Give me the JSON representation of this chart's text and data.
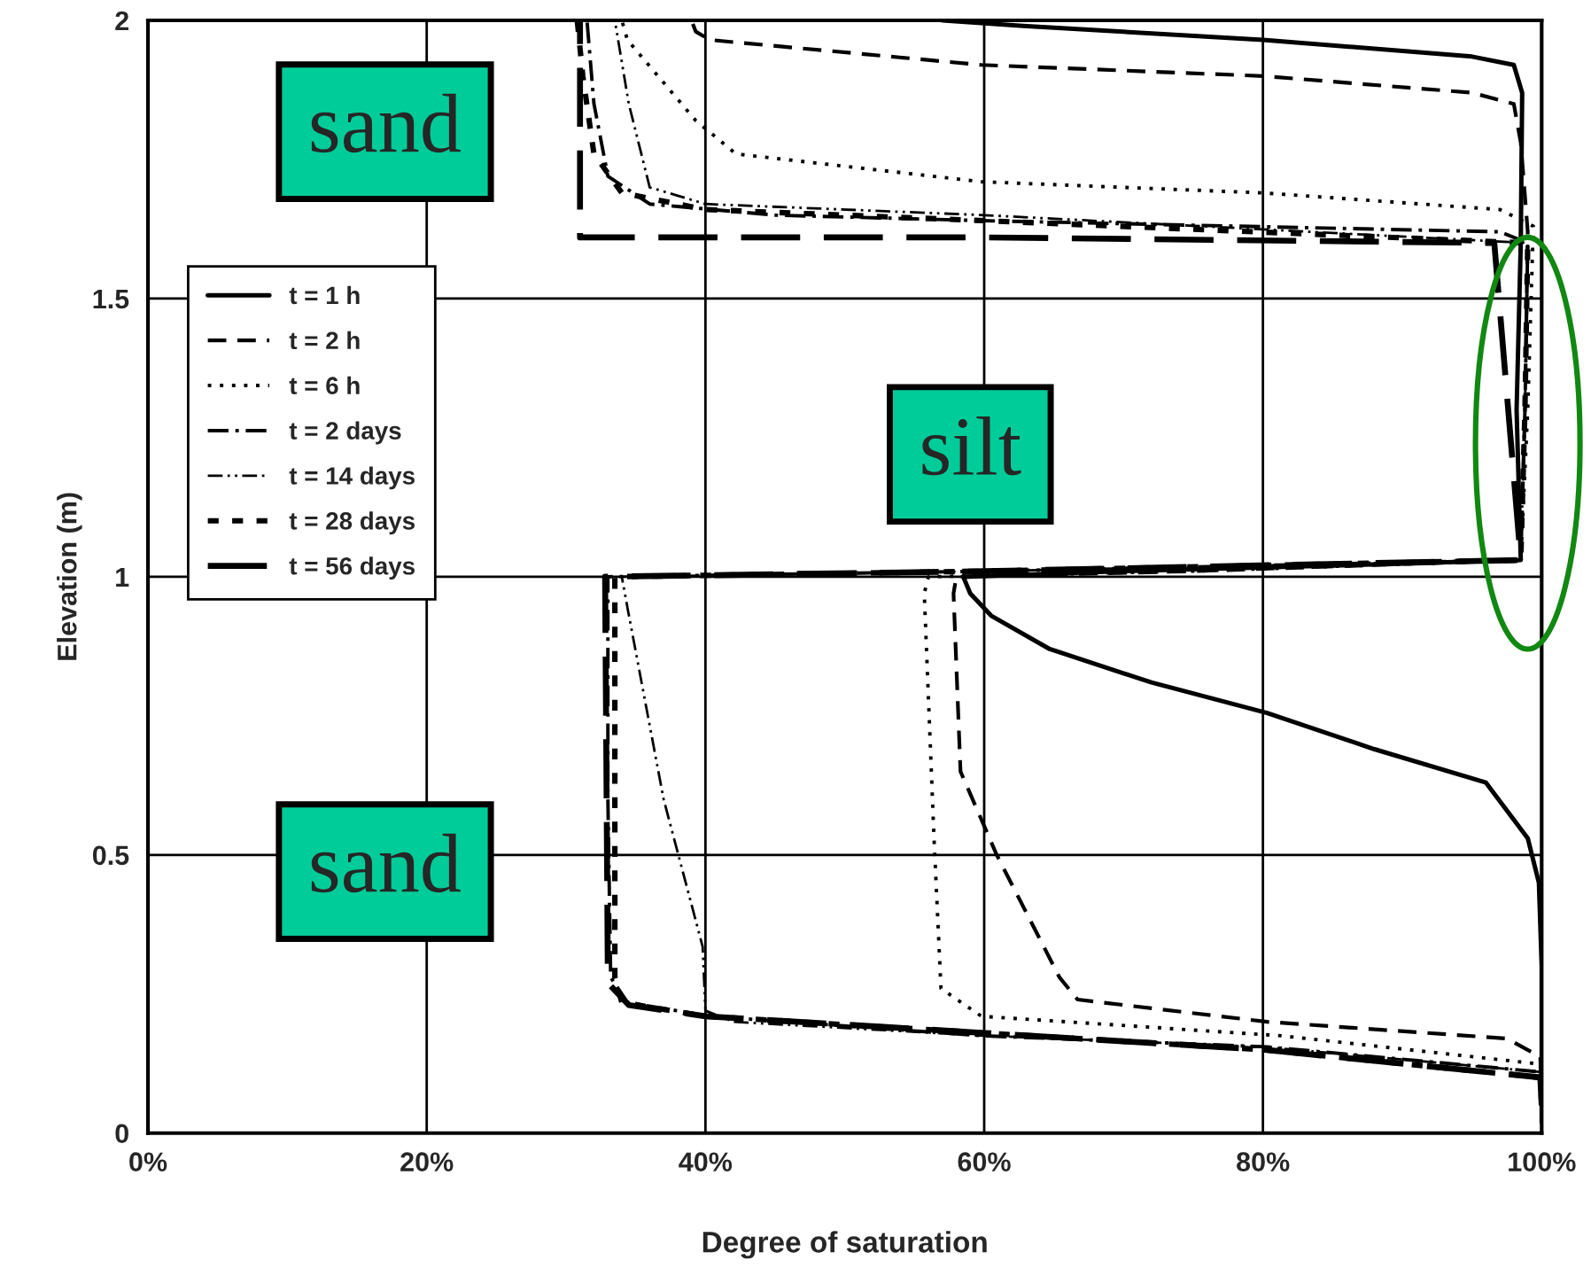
{
  "chart_data": {
    "type": "line",
    "xlabel": "Degree of saturation",
    "ylabel": "Elevation (m)",
    "xlim": [
      0,
      100
    ],
    "ylim": [
      0,
      2
    ],
    "xticks": [
      {
        "value": 0,
        "label": "0%"
      },
      {
        "value": 20,
        "label": "20%"
      },
      {
        "value": 40,
        "label": "40%"
      },
      {
        "value": 60,
        "label": "60%"
      },
      {
        "value": 80,
        "label": "80%"
      },
      {
        "value": 100,
        "label": "100%"
      }
    ],
    "yticks": [
      0,
      0.5,
      1,
      1.5,
      2
    ],
    "grid": true,
    "legend": "top left",
    "marker": "none",
    "annotations": [
      "sand",
      "silt",
      "sand"
    ],
    "series": [
      {
        "name": "t = 1 h",
        "color": "#000000",
        "line_style": "solid",
        "x": [
          100,
          100,
          99.8,
          99,
          96,
          88,
          80.3,
          72,
          64.7,
          60.5,
          59,
          58.5,
          70,
          85,
          98.5,
          98.2,
          98.5,
          98.6,
          98,
          95,
          80,
          62.8,
          57
        ],
        "values": [
          0.02,
          0.3,
          0.45,
          0.53,
          0.63,
          0.69,
          0.755,
          0.81,
          0.87,
          0.93,
          0.97,
          1.0,
          1.01,
          1.02,
          1.03,
          1.3,
          1.6,
          1.87,
          1.92,
          1.935,
          1.965,
          1.99,
          2.0
        ]
      },
      {
        "name": "t = 2 h",
        "color": "#000000",
        "line_style": "dashed",
        "x": [
          100,
          99.9,
          97.5,
          80.3,
          66.7,
          65.4,
          60.9,
          58.3,
          57.8,
          58,
          75,
          98.5,
          98.8,
          99,
          98.5,
          98,
          95,
          80,
          59.8,
          40.3,
          39.3,
          39
        ],
        "values": [
          0.05,
          0.137,
          0.17,
          0.2,
          0.24,
          0.28,
          0.5,
          0.65,
          0.97,
          1.0,
          1.01,
          1.03,
          1.3,
          1.62,
          1.78,
          1.85,
          1.87,
          1.9,
          1.92,
          1.965,
          1.98,
          2.0
        ]
      },
      {
        "name": "t = 6 h",
        "color": "#000000",
        "line_style": "dotted",
        "x": [
          100,
          99.9,
          81.3,
          59.8,
          56.9,
          56.4,
          55.7,
          56,
          75,
          98.5,
          99,
          99.4,
          97,
          80,
          59.8,
          42.2,
          39.3,
          34.4,
          34
        ],
        "values": [
          0.05,
          0.124,
          0.175,
          0.21,
          0.26,
          0.53,
          0.97,
          1.0,
          1.01,
          1.03,
          1.3,
          1.63,
          1.66,
          1.69,
          1.71,
          1.76,
          1.82,
          1.965,
          2.0
        ]
      },
      {
        "name": "t = 2 days",
        "color": "#000000",
        "line_style": "dashdot",
        "x": [
          100,
          99.9,
          80.3,
          59.8,
          40.3,
          34.4,
          33.2,
          33,
          33,
          60,
          98.5,
          98.8,
          99,
          97,
          60,
          45,
          36,
          33,
          32,
          31.5
        ],
        "values": [
          0.05,
          0.11,
          0.155,
          0.175,
          0.21,
          0.235,
          0.28,
          0.6,
          1.0,
          1.01,
          1.03,
          1.3,
          1.6,
          1.62,
          1.64,
          1.65,
          1.67,
          1.72,
          1.85,
          2.0
        ]
      },
      {
        "name": "t = 14 days",
        "color": "#000000",
        "line_style": "dashdotdot",
        "x": [
          100,
          99.9,
          80,
          60,
          42,
          40,
          39.8,
          37,
          34.4,
          34,
          60,
          98.5,
          98.8,
          99,
          60,
          40,
          36,
          34.5,
          33.5
        ],
        "values": [
          0.05,
          0.11,
          0.155,
          0.175,
          0.2,
          0.22,
          0.335,
          0.6,
          0.945,
          1.0,
          1.01,
          1.03,
          1.3,
          1.6,
          1.65,
          1.67,
          1.7,
          1.85,
          2.0
        ]
      },
      {
        "name": "t = 28 days",
        "color": "#000000",
        "line_style": "densely dashed",
        "x": [
          100,
          99.9,
          80,
          60,
          40,
          34,
          33.5,
          33.5,
          60,
          98.5,
          98.8,
          99,
          60,
          40,
          34,
          32,
          31.2,
          30.8
        ],
        "values": [
          0.05,
          0.1,
          0.15,
          0.18,
          0.21,
          0.235,
          0.28,
          1.0,
          1.01,
          1.03,
          1.3,
          1.6,
          1.64,
          1.66,
          1.69,
          1.76,
          1.9,
          2.0
        ]
      },
      {
        "name": "t = 56 days",
        "color": "#000000",
        "line_style": "long dashed",
        "x": [
          100,
          99.9,
          80,
          60,
          40,
          34.5,
          33,
          32.8,
          60,
          98.5,
          96.6,
          60,
          31,
          31
        ],
        "values": [
          0.05,
          0.1,
          0.15,
          0.18,
          0.21,
          0.23,
          0.27,
          1.0,
          1.01,
          1.03,
          1.6,
          1.61,
          1.61,
          2.0
        ]
      }
    ]
  }
}
